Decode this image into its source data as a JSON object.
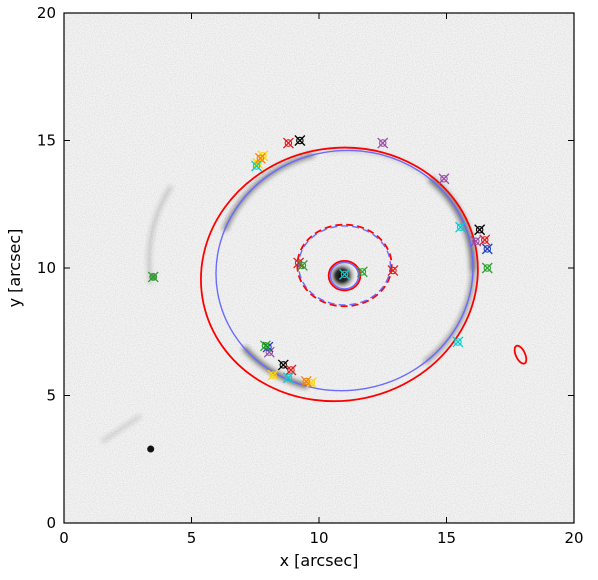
{
  "chart_data": {
    "type": "scatter",
    "title": "",
    "xlabel": "x [arcsec]",
    "ylabel": "y [arcsec]",
    "xlim": [
      0,
      20
    ],
    "ylim": [
      0,
      20
    ],
    "x_ticks": [
      "0",
      "5",
      "10",
      "15",
      "20"
    ],
    "y_ticks": [
      "0",
      "5",
      "10",
      "15",
      "20"
    ],
    "grid": false,
    "background": "greyscale lensing image",
    "lens_center": [
      10.9,
      9.7
    ],
    "colors": {
      "critical_curve": "#ff0000",
      "model_curve": "#6a6aff",
      "axis": "#000000"
    },
    "curves": [
      {
        "name": "",
        "style": "solid",
        "color": "#ff0000",
        "cx": 10.8,
        "cy": 9.75,
        "rx": 5.45,
        "ry": 4.95,
        "rotation_deg": 12
      },
      {
        "name": "",
        "style": "solid",
        "color": "#6a6aff",
        "cx": 11.0,
        "cy": 9.9,
        "rx": 5.05,
        "ry": 4.7,
        "rotation_deg": 10
      },
      {
        "name": "",
        "style": "dashed",
        "color": "#ff0000",
        "cx": 11.0,
        "cy": 10.1,
        "rx": 1.85,
        "ry": 1.6,
        "rotation_deg": 0
      },
      {
        "name": "",
        "style": "dashed",
        "color": "#6a6aff",
        "cx": 11.0,
        "cy": 10.1,
        "rx": 1.8,
        "ry": 1.55,
        "rotation_deg": 0
      },
      {
        "name": "",
        "style": "solid",
        "color": "#ff0000",
        "cx": 11.0,
        "cy": 9.7,
        "rx": 0.62,
        "ry": 0.58,
        "rotation_deg": 0
      },
      {
        "name": "",
        "style": "solid",
        "color": "#6a6aff",
        "cx": 11.0,
        "cy": 9.7,
        "rx": 0.55,
        "ry": 0.52,
        "rotation_deg": 0
      },
      {
        "name": "",
        "style": "solid",
        "color": "#ff0000",
        "cx": 17.9,
        "cy": 6.6,
        "rx": 0.18,
        "ry": 0.38,
        "rotation_deg": 25
      }
    ],
    "series": [
      {
        "color": "#000000",
        "points": [
          [
            9.25,
            15.0
          ],
          [
            16.3,
            11.5
          ],
          [
            8.6,
            6.2
          ]
        ]
      },
      {
        "color": "#e41a1c",
        "points": [
          [
            8.8,
            14.9
          ],
          [
            16.5,
            11.1
          ],
          [
            8.9,
            6.0
          ],
          [
            9.2,
            10.2
          ],
          [
            12.9,
            9.9
          ]
        ]
      },
      {
        "color": "#984ea3",
        "points": [
          [
            12.5,
            14.9
          ],
          [
            14.9,
            13.5
          ],
          [
            16.15,
            11.05
          ],
          [
            8.05,
            6.7
          ]
        ]
      },
      {
        "color": "#ffd700",
        "points": [
          [
            7.8,
            14.4
          ],
          [
            9.7,
            5.5
          ],
          [
            7.6,
            14.1
          ],
          [
            8.2,
            5.8
          ]
        ]
      },
      {
        "color": "#00ced1",
        "points": [
          [
            7.55,
            14.0
          ],
          [
            15.55,
            11.6
          ],
          [
            15.45,
            7.1
          ],
          [
            8.8,
            5.7
          ],
          [
            11.0,
            9.75
          ]
        ]
      },
      {
        "color": "#1f3fbf",
        "points": [
          [
            16.6,
            10.75
          ],
          [
            8.0,
            6.9
          ]
        ]
      },
      {
        "color": "#2ca02c",
        "points": [
          [
            16.6,
            10.0
          ],
          [
            3.5,
            9.65
          ],
          [
            7.9,
            6.95
          ],
          [
            11.7,
            9.85
          ],
          [
            9.35,
            10.1
          ]
        ]
      },
      {
        "color": "#ff7f00",
        "points": [
          [
            9.5,
            5.55
          ],
          [
            7.7,
            14.3
          ]
        ]
      }
    ]
  }
}
